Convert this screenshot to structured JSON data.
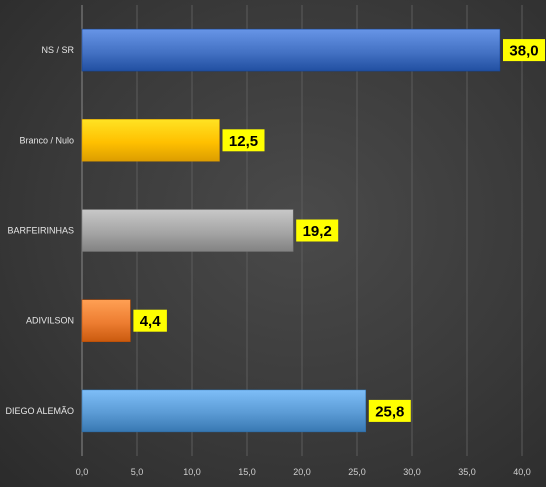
{
  "chart_data": {
    "type": "bar",
    "orientation": "horizontal",
    "categories": [
      "NS / SR",
      "Branco / Nulo",
      "BARFEIRINHAS",
      "ADIVILSON",
      "DIEGO ALEMÃO"
    ],
    "values": [
      38.0,
      12.5,
      19.2,
      4.4,
      25.8
    ],
    "data_labels": [
      "38,0",
      "12,5",
      "19,2",
      "4,4",
      "25,8"
    ],
    "colors": [
      "#4472c4",
      "#ffc000",
      "#a5a5a5",
      "#ed7d31",
      "#5b9bd5"
    ],
    "xlim": [
      0,
      40
    ],
    "x_ticks": [
      0,
      5,
      10,
      15,
      20,
      25,
      30,
      35,
      40
    ],
    "x_tick_labels": [
      "0,0",
      "5,0",
      "10,0",
      "15,0",
      "20,0",
      "25,0",
      "30,0",
      "35,0",
      "40,0"
    ],
    "grid": true,
    "data_label_background": "#ffff00",
    "title": "",
    "xlabel": "",
    "ylabel": ""
  }
}
